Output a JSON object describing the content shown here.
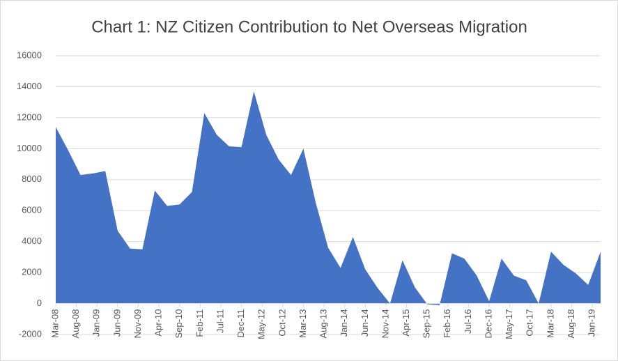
{
  "chart_data": {
    "type": "area",
    "title": "Chart 1: NZ Citizen Contribution to Net Overseas Migration",
    "x": [
      "2008-03",
      "2008-06",
      "2008-09",
      "2008-12",
      "2009-03",
      "2009-06",
      "2009-09",
      "2009-12",
      "2010-03",
      "2010-06",
      "2010-09",
      "2010-12",
      "2011-03",
      "2011-06",
      "2011-09",
      "2011-12",
      "2012-03",
      "2012-06",
      "2012-09",
      "2012-12",
      "2013-03",
      "2013-06",
      "2013-09",
      "2013-12",
      "2014-03",
      "2014-06",
      "2014-09",
      "2014-12",
      "2015-03",
      "2015-06",
      "2015-09",
      "2015-12",
      "2016-03",
      "2016-06",
      "2016-09",
      "2016-12",
      "2017-03",
      "2017-06",
      "2017-09",
      "2017-12",
      "2018-03",
      "2018-06",
      "2018-09",
      "2018-12",
      "2019-03"
    ],
    "values": [
      11400,
      9900,
      8300,
      8400,
      8550,
      4700,
      3550,
      3500,
      7300,
      6300,
      6400,
      7200,
      12300,
      10900,
      10150,
      10100,
      13700,
      10900,
      9300,
      8300,
      10000,
      6500,
      3600,
      2300,
      4300,
      2200,
      1000,
      0,
      2800,
      1050,
      -50,
      -100,
      3250,
      2900,
      1800,
      150,
      2900,
      1800,
      1500,
      0,
      3350,
      2500,
      1950,
      1200,
      3350
    ],
    "color": "#4472c4",
    "xlim": [
      "2008-03",
      "2019-03"
    ],
    "xticks": [
      {
        "value": "2008-03",
        "label": "Mar-08"
      },
      {
        "value": "2008-08",
        "label": "Aug-08"
      },
      {
        "value": "2009-01",
        "label": "Jan-09"
      },
      {
        "value": "2009-06",
        "label": "Jun-09"
      },
      {
        "value": "2009-11",
        "label": "Nov-09"
      },
      {
        "value": "2010-04",
        "label": "Apr-10"
      },
      {
        "value": "2010-09",
        "label": "Sep-10"
      },
      {
        "value": "2011-02",
        "label": "Feb-11"
      },
      {
        "value": "2011-07",
        "label": "Jul-11"
      },
      {
        "value": "2011-12",
        "label": "Dec-11"
      },
      {
        "value": "2012-05",
        "label": "May-12"
      },
      {
        "value": "2012-10",
        "label": "Oct-12"
      },
      {
        "value": "2013-03",
        "label": "Mar-13"
      },
      {
        "value": "2013-08",
        "label": "Aug-13"
      },
      {
        "value": "2014-01",
        "label": "Jan-14"
      },
      {
        "value": "2014-06",
        "label": "Jun-14"
      },
      {
        "value": "2014-11",
        "label": "Nov-14"
      },
      {
        "value": "2015-04",
        "label": "Apr-15"
      },
      {
        "value": "2015-09",
        "label": "Sep-15"
      },
      {
        "value": "2016-02",
        "label": "Feb-16"
      },
      {
        "value": "2016-07",
        "label": "Jul-16"
      },
      {
        "value": "2016-12",
        "label": "Dec-16"
      },
      {
        "value": "2017-05",
        "label": "May-17"
      },
      {
        "value": "2017-10",
        "label": "Oct-17"
      },
      {
        "value": "2018-03",
        "label": "Mar-18"
      },
      {
        "value": "2018-08",
        "label": "Aug-18"
      },
      {
        "value": "2019-01",
        "label": "Jan-19"
      }
    ],
    "ylim": [
      -2000,
      16000
    ],
    "yticks": [
      -2000,
      0,
      2000,
      4000,
      6000,
      8000,
      10000,
      12000,
      14000,
      16000
    ],
    "grid": true
  }
}
